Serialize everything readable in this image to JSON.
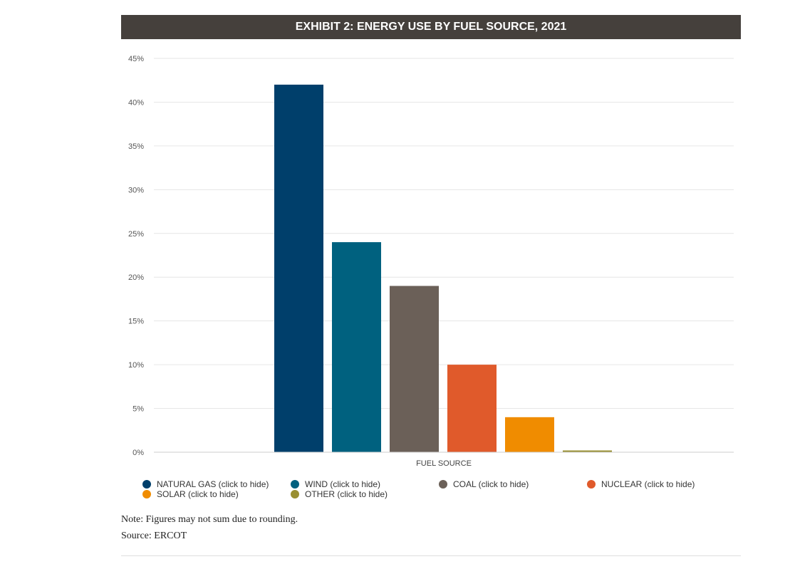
{
  "chart_data": {
    "type": "bar",
    "title": "EXHIBIT 2: ENERGY USE BY FUEL SOURCE, 2021",
    "xlabel": "FUEL SOURCE",
    "ylabel": "",
    "ylim": [
      0,
      45
    ],
    "yticks": [
      "0%",
      "5%",
      "10%",
      "15%",
      "20%",
      "25%",
      "30%",
      "35%",
      "40%",
      "45%"
    ],
    "grid": true,
    "legend_position": "bottom",
    "categories": [
      "FUEL SOURCE"
    ],
    "series": [
      {
        "name": "NATURAL GAS",
        "values": [
          42
        ],
        "color": "#003f6b"
      },
      {
        "name": "WIND",
        "values": [
          24
        ],
        "color": "#00617f"
      },
      {
        "name": "COAL",
        "values": [
          19
        ],
        "color": "#6b6058"
      },
      {
        "name": "NUCLEAR",
        "values": [
          10
        ],
        "color": "#e05a2b"
      },
      {
        "name": "SOLAR",
        "values": [
          4
        ],
        "color": "#f08c00"
      },
      {
        "name": "OTHER",
        "values": [
          0.2
        ],
        "color": "#998f32"
      }
    ]
  },
  "legend": {
    "items": [
      {
        "label": "NATURAL GAS (click to hide)",
        "color": "#003f6b"
      },
      {
        "label": "WIND (click to hide)",
        "color": "#00617f"
      },
      {
        "label": "COAL (click to hide)",
        "color": "#6b6058"
      },
      {
        "label": "NUCLEAR (click to hide)",
        "color": "#e05a2b"
      },
      {
        "label": "SOLAR (click to hide)",
        "color": "#f08c00"
      },
      {
        "label": "OTHER (click to hide)",
        "color": "#998f32"
      }
    ]
  },
  "notes": {
    "note": "Note: Figures may not sum due to rounding.",
    "source": "Source: ERCOT"
  }
}
